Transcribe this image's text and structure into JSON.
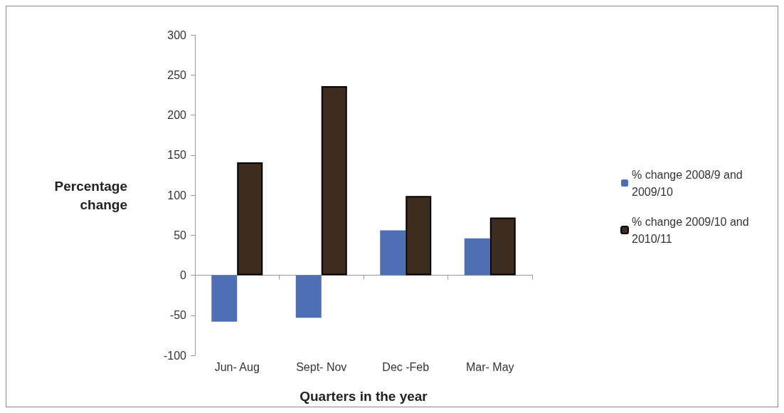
{
  "chart_data": {
    "type": "bar",
    "xlabel": "Quarters in the year",
    "ylabel": "Percentage\nchange",
    "categories": [
      "Jun- Aug",
      "Sept- Nov",
      "Dec -Feb",
      "Mar- May"
    ],
    "series": [
      {
        "name": "% change 2008/9 and 2009/10",
        "color": "#4f6fb5",
        "values": [
          -58,
          -53,
          56,
          46
        ]
      },
      {
        "name": "% change 2009/10 and 2010/11",
        "color": "#3d2c20",
        "values": [
          141,
          236,
          99,
          72
        ]
      }
    ],
    "ylim": [
      -100,
      300
    ],
    "yticks": [
      -100,
      -50,
      0,
      50,
      100,
      150,
      200,
      250,
      300
    ],
    "legend": "right"
  }
}
